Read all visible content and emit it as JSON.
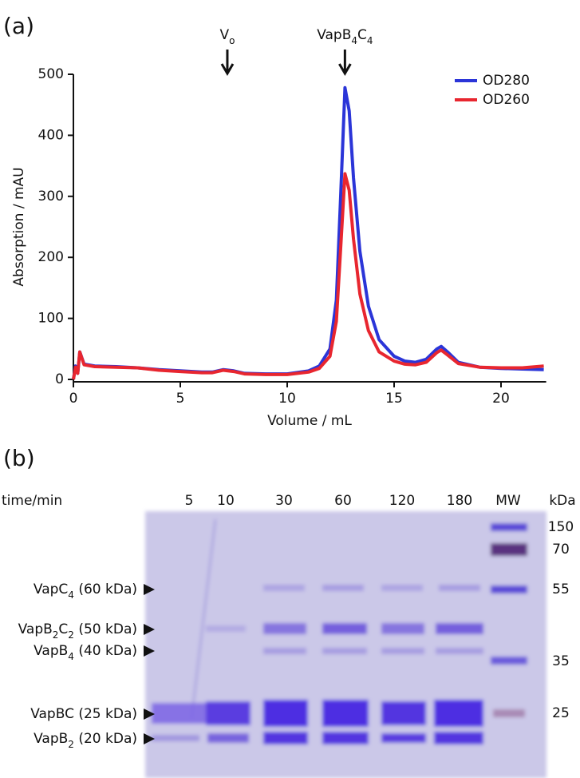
{
  "chart_data": {
    "type": "line",
    "panel_label": "(a)",
    "xlabel": "Volume / mL",
    "ylabel": "Absorption / mAU",
    "x": [
      0,
      0.1,
      0.2,
      0.3,
      0.5,
      1,
      2,
      3,
      4,
      5,
      6,
      6.5,
      7,
      7.5,
      8,
      9,
      10,
      11,
      11.5,
      12,
      12.3,
      12.5,
      12.7,
      12.9,
      13.1,
      13.4,
      13.8,
      14.3,
      15,
      15.5,
      16,
      16.5,
      17,
      17.2,
      17.5,
      18,
      19,
      20,
      21,
      22
    ],
    "series": [
      {
        "name": "OD280",
        "color": "#2b35d8",
        "values": [
          0,
          22,
          10,
          45,
          25,
          22,
          21,
          19,
          16,
          14,
          12,
          12,
          16,
          14,
          10,
          9,
          9,
          14,
          22,
          50,
          130,
          300,
          478,
          440,
          330,
          210,
          120,
          65,
          38,
          30,
          28,
          33,
          50,
          54,
          45,
          28,
          20,
          18,
          17,
          16
        ]
      },
      {
        "name": "OD260",
        "color": "#e8262f",
        "values": [
          0,
          20,
          10,
          45,
          24,
          21,
          20,
          19,
          15,
          13,
          11,
          11,
          15,
          13,
          9,
          8,
          8,
          12,
          18,
          38,
          95,
          215,
          337,
          310,
          230,
          140,
          80,
          45,
          30,
          25,
          24,
          28,
          44,
          48,
          40,
          26,
          20,
          19,
          19,
          22
        ]
      }
    ],
    "xlim": [
      0,
      22
    ],
    "ylim": [
      0,
      500
    ],
    "xticks": [
      0,
      5,
      10,
      15,
      20
    ],
    "yticks": [
      0,
      100,
      200,
      300,
      400,
      500
    ],
    "grid": false,
    "legend": "upper right",
    "annotations": [
      {
        "text": [
          "V",
          "o"
        ],
        "x": 7.2
      },
      {
        "text": [
          "VapB",
          "4",
          "C",
          "4"
        ],
        "x": 12.7
      }
    ]
  },
  "gel": {
    "panel_label": "(b)",
    "lane_header": "time/min",
    "lanes": [
      "5",
      "10",
      "30",
      "60",
      "120",
      "180",
      "MW"
    ],
    "unit": "kDa",
    "markers": [
      "150",
      "70",
      "55",
      "35",
      "25"
    ],
    "bands": [
      {
        "label": [
          "VapC",
          "4",
          " (60 kDa)"
        ]
      },
      {
        "label": [
          "VapB",
          "2",
          "C",
          "2",
          " (50 kDa)"
        ]
      },
      {
        "label": [
          "VapB",
          "4",
          " (40 kDa)"
        ]
      },
      {
        "label": [
          "VapBC (25 kDa)"
        ]
      },
      {
        "label": [
          "VapB",
          "2",
          " (20 kDa)"
        ]
      }
    ]
  }
}
